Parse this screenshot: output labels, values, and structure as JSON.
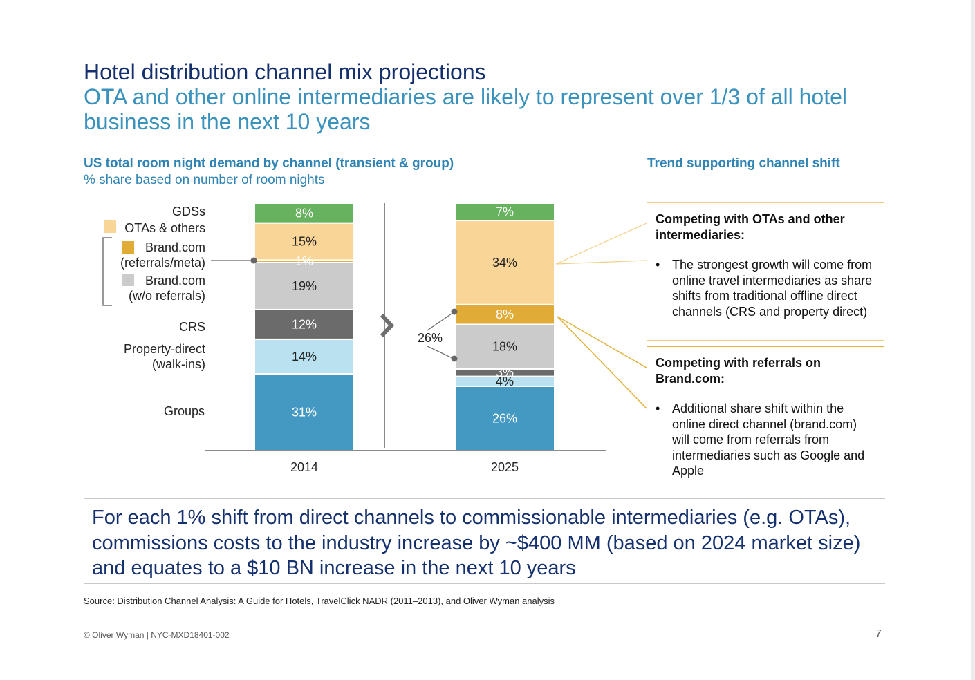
{
  "title": "Hotel distribution channel mix projections",
  "subtitle": "OTA and other online intermediaries are likely to represent over 1/3 of all hotel business in the next 10 years",
  "chart_heading": "US total room night demand by channel (transient & group)",
  "chart_subheading": "% share based on number of room nights",
  "trend_heading": "Trend supporting channel shift",
  "chart_data": {
    "type": "bar",
    "stacked": true,
    "categories": [
      "2014",
      "2025"
    ],
    "unit": "%",
    "series": [
      {
        "name": "Groups",
        "values": [
          31,
          26
        ],
        "color": "#4499c3",
        "label_color": "#ffffff"
      },
      {
        "name": "Property-direct (walk-ins)",
        "values": [
          14,
          4
        ],
        "color": "#b9e1ef",
        "label_color": "#222222"
      },
      {
        "name": "CRS",
        "values": [
          12,
          3
        ],
        "color": "#6b6b6b",
        "label_color": "#ffffff"
      },
      {
        "name": "Brand.com (w/o referrals)",
        "values": [
          19,
          18
        ],
        "color": "#cbcbcb",
        "label_color": "#222222"
      },
      {
        "name": "Brand.com (referrals/meta)",
        "values": [
          1,
          8
        ],
        "color": "#e1ab37",
        "label_color": "#ffffff"
      },
      {
        "name": "OTAs & others",
        "values": [
          15,
          34
        ],
        "color": "#f9d598",
        "label_color": "#222222"
      },
      {
        "name": "GDSs",
        "values": [
          8,
          7
        ],
        "color": "#67b25f",
        "label_color": "#ffffff"
      }
    ],
    "data_labels": [
      [
        "31%",
        "14%",
        "12%",
        "19%",
        "1%",
        "15%",
        "8%"
      ],
      [
        "26%",
        "4%",
        "3%",
        "18%",
        "8%",
        "34%",
        "7%"
      ]
    ],
    "bracket_annotation": "26%",
    "legend_labels": {
      "gds": "GDSs",
      "ota": "OTAs & others",
      "brand_ref_1": "Brand.com",
      "brand_ref_2": "(referrals/meta)",
      "brand_wo_1": "Brand.com",
      "brand_wo_2": "(w/o referrals)",
      "crs": "CRS",
      "prop_1": "Property-direct",
      "prop_2": "(walk-ins)",
      "groups": "Groups"
    }
  },
  "trend_boxes": [
    {
      "title": "Competing with OTAs and other intermediaries:",
      "bullet": "The strongest growth will come from online travel intermediaries as share shifts from traditional offline direct channels (CRS and property direct)"
    },
    {
      "title": "Competing with referrals on Brand.com:",
      "bullet": "Additional share shift within the online direct channel (brand.com) will come from referrals from intermediaries such as Google and Apple"
    }
  ],
  "callout": "For each 1% shift from direct channels to commissionable intermediaries (e.g. OTAs), commissions costs to the industry increase by ~$400 MM (based on 2024 market size) and equates to a $10 BN increase in the next 10 years",
  "source": "Source: Distribution Channel Analysis: A Guide for Hotels, TravelClick NADR (2011–2013), and Oliver Wyman analysis",
  "footer": "© Oliver Wyman | NYC-MXD18401-002",
  "page_number": "7"
}
